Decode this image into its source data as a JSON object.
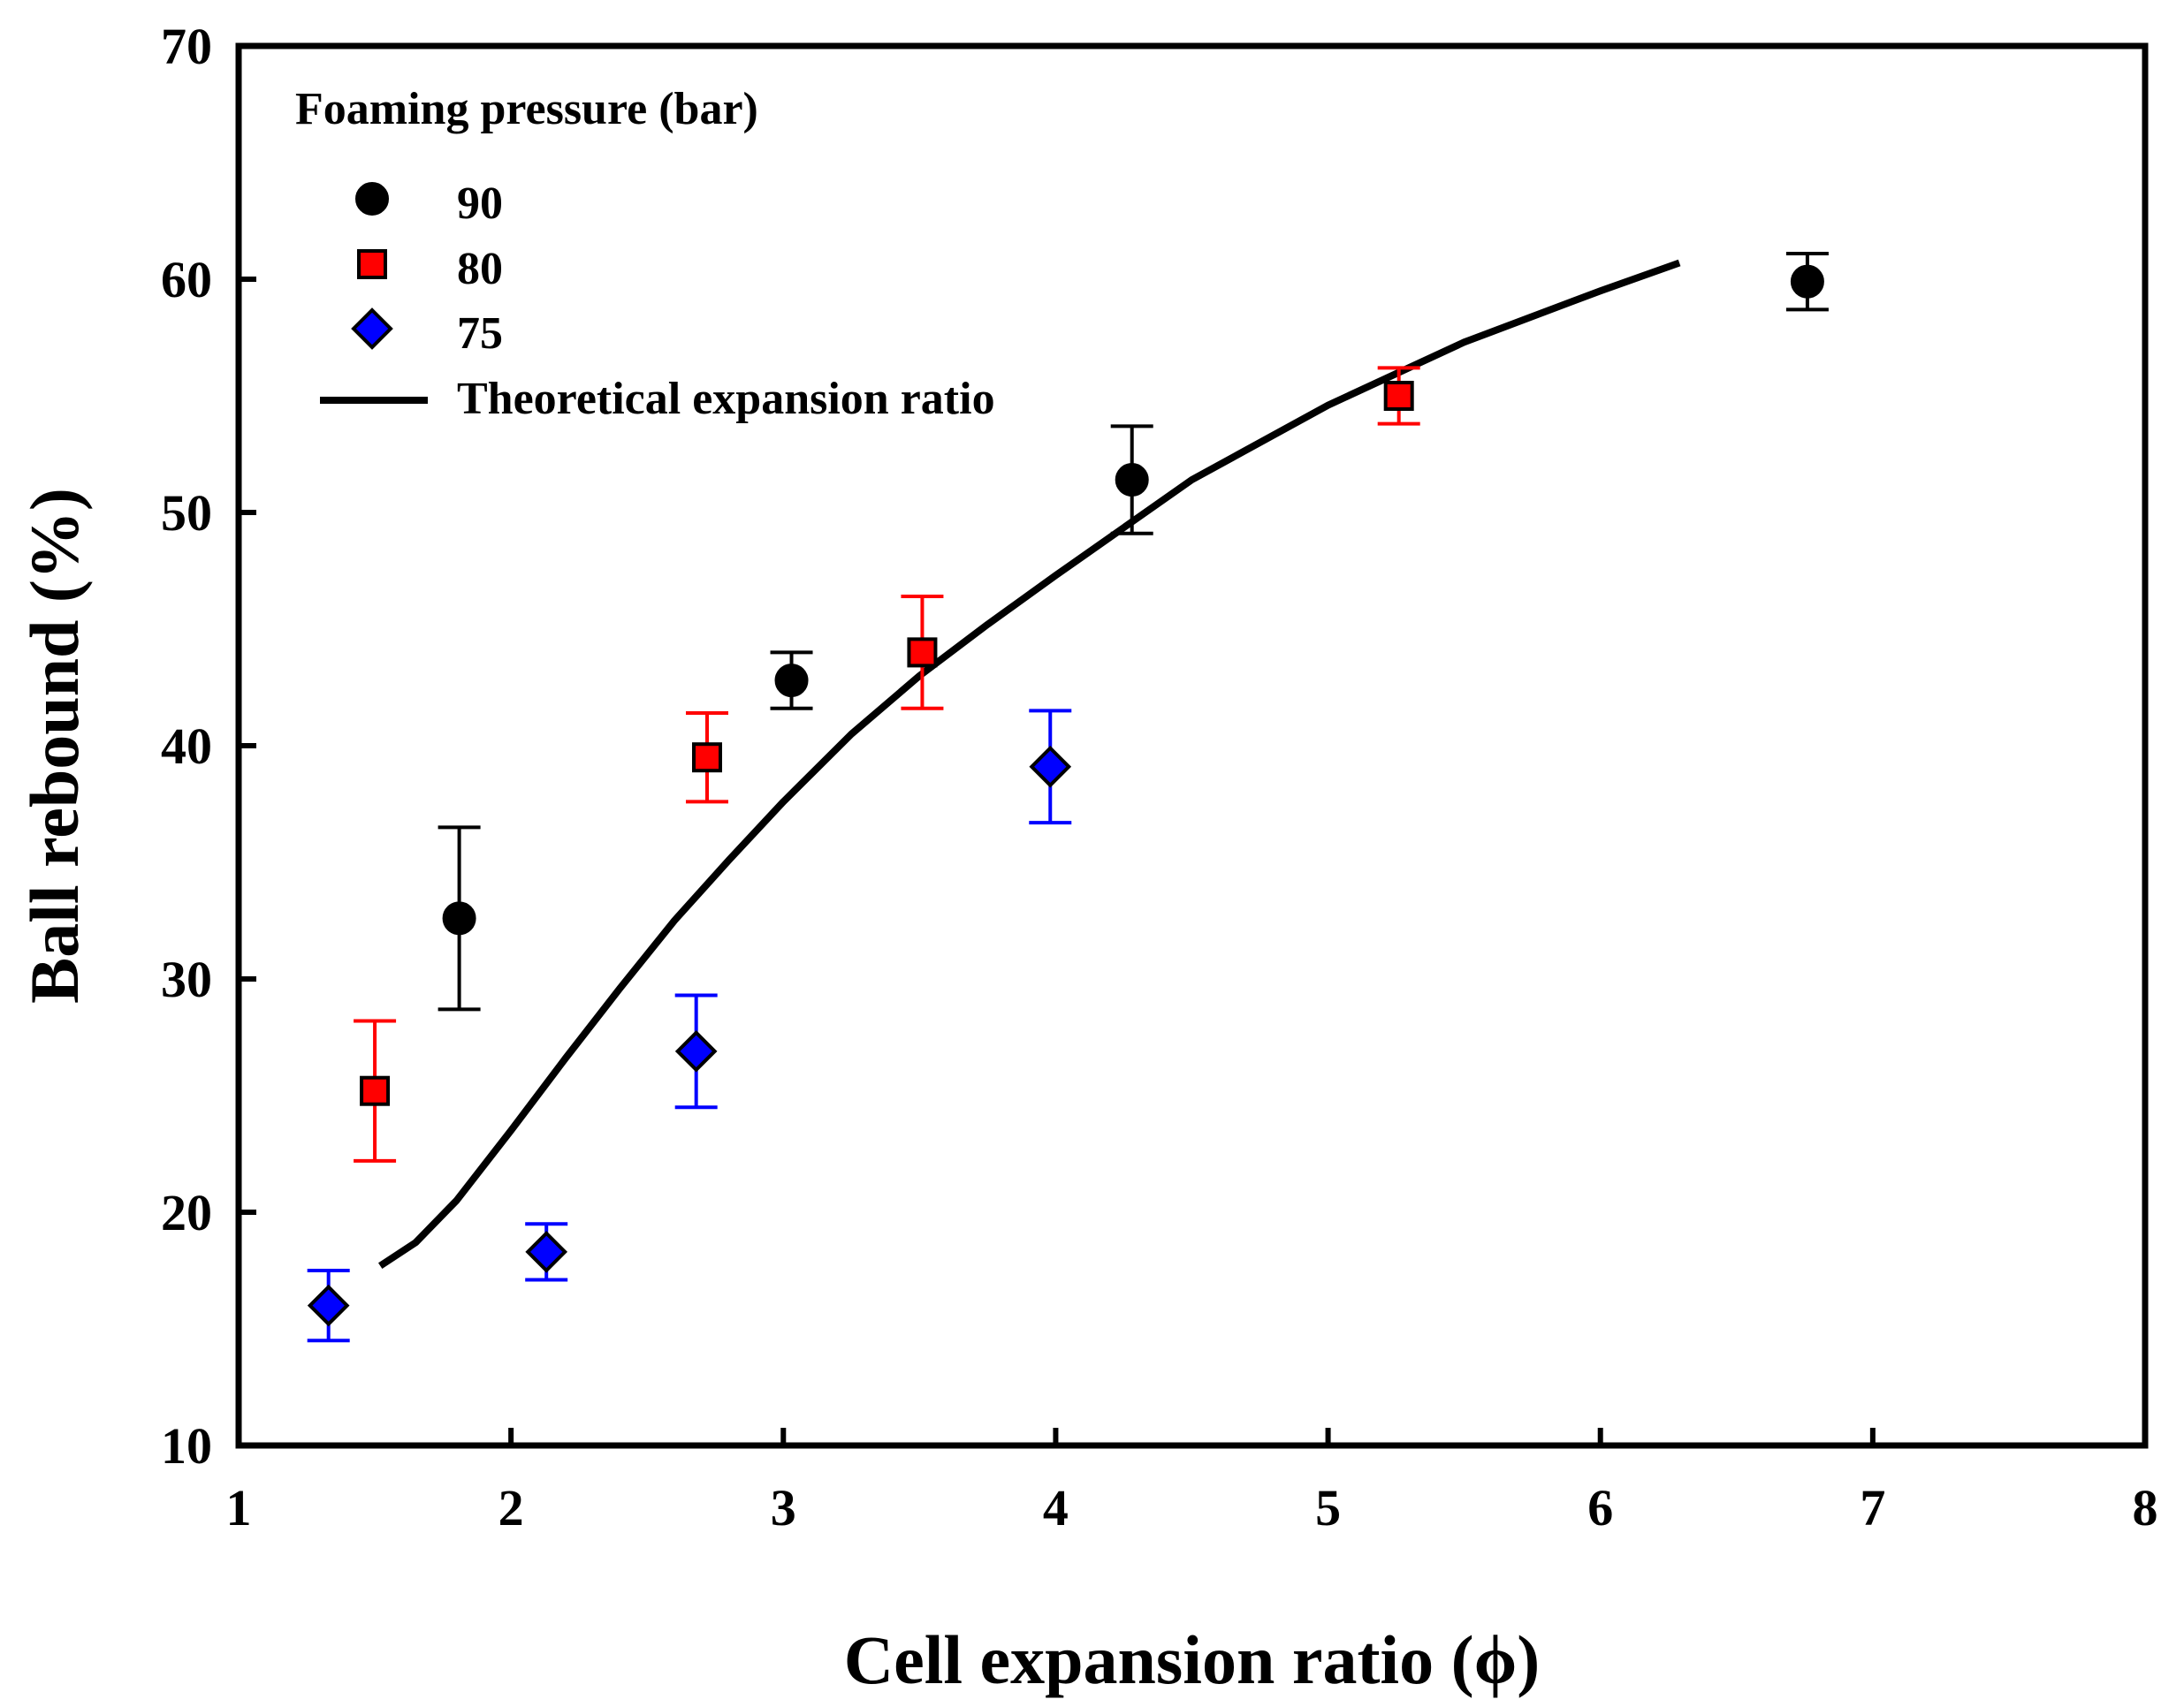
{
  "chart_data": {
    "type": "scatter",
    "xlabel": "Cell expansion ratio (ϕ)",
    "ylabel": "Ball rebound (%)",
    "xlim": [
      1,
      8
    ],
    "ylim": [
      10,
      70
    ],
    "xticks": [
      1,
      2,
      3,
      4,
      5,
      6,
      7,
      8
    ],
    "yticks": [
      10,
      20,
      30,
      40,
      50,
      60,
      70
    ],
    "grid": false,
    "legend": {
      "title": "Foaming pressure (bar)",
      "placement": "top-left"
    },
    "series": [
      {
        "name": "90",
        "marker": "circle",
        "color": "#000000",
        "error_color": "#000000",
        "points": [
          {
            "x": 1.81,
            "y": 32.6,
            "err": 3.9
          },
          {
            "x": 3.03,
            "y": 42.8,
            "err": 1.2
          },
          {
            "x": 4.28,
            "y": 51.4,
            "err": 2.3
          },
          {
            "x": 6.76,
            "y": 59.9,
            "err": 1.2
          }
        ]
      },
      {
        "name": "80",
        "marker": "square",
        "color": "#ff0000",
        "error_color": "#ff0000",
        "points": [
          {
            "x": 1.5,
            "y": 25.2,
            "err": 3.0
          },
          {
            "x": 2.72,
            "y": 39.5,
            "err": 1.9
          },
          {
            "x": 3.51,
            "y": 44.0,
            "err": 2.4
          },
          {
            "x": 5.26,
            "y": 55.0,
            "err": 1.2
          }
        ]
      },
      {
        "name": "75",
        "marker": "diamond",
        "color": "#0000ff",
        "error_color": "#0000ff",
        "points": [
          {
            "x": 1.33,
            "y": 16.0,
            "err": 1.5
          },
          {
            "x": 2.13,
            "y": 18.3,
            "err": 1.2
          },
          {
            "x": 2.68,
            "y": 26.9,
            "err": 2.4
          },
          {
            "x": 3.98,
            "y": 39.1,
            "err": 2.4
          }
        ]
      },
      {
        "name": "Theoretical expansion ratio",
        "type": "line",
        "color": "#000000",
        "points": [
          {
            "x": 1.52,
            "y": 17.7
          },
          {
            "x": 1.65,
            "y": 18.7
          },
          {
            "x": 1.8,
            "y": 20.5
          },
          {
            "x": 2.0,
            "y": 23.5
          },
          {
            "x": 2.2,
            "y": 26.6
          },
          {
            "x": 2.4,
            "y": 29.6
          },
          {
            "x": 2.6,
            "y": 32.5
          },
          {
            "x": 2.8,
            "y": 35.1
          },
          {
            "x": 3.0,
            "y": 37.6
          },
          {
            "x": 3.25,
            "y": 40.5
          },
          {
            "x": 3.5,
            "y": 43.0
          },
          {
            "x": 3.75,
            "y": 45.2
          },
          {
            "x": 4.0,
            "y": 47.3
          },
          {
            "x": 4.5,
            "y": 51.4
          },
          {
            "x": 5.0,
            "y": 54.6
          },
          {
            "x": 5.5,
            "y": 57.3
          },
          {
            "x": 6.0,
            "y": 59.5
          },
          {
            "x": 6.29,
            "y": 60.7
          }
        ]
      }
    ]
  }
}
